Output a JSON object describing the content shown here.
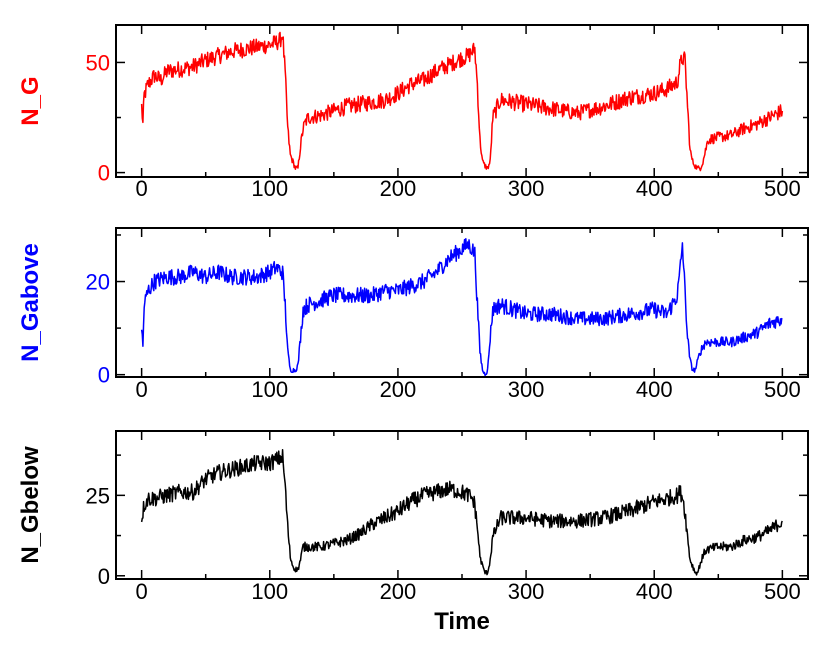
{
  "chart_data": [
    {
      "type": "line",
      "ylabel": "N_G",
      "xlabel": "",
      "xlim": [
        -20,
        520
      ],
      "ylim": [
        -2,
        67
      ],
      "xticks": [
        0,
        100,
        200,
        300,
        400,
        500
      ],
      "yticks": [
        0,
        50
      ],
      "color": "#ff0000",
      "series": [
        {
          "name": "N_G",
          "x": [
            0,
            1,
            2,
            5,
            10,
            15,
            20,
            30,
            40,
            50,
            60,
            70,
            80,
            90,
            100,
            105,
            108,
            110,
            112,
            114,
            116,
            118,
            120,
            122,
            124,
            126,
            128,
            130,
            140,
            150,
            160,
            170,
            180,
            190,
            200,
            210,
            220,
            230,
            240,
            250,
            255,
            258,
            260,
            262,
            264,
            266,
            268,
            270,
            272,
            274,
            280,
            290,
            300,
            320,
            340,
            360,
            380,
            400,
            410,
            418,
            420,
            422,
            424,
            426,
            428,
            430,
            432,
            434,
            436,
            438,
            440,
            442,
            450,
            460,
            470,
            480,
            490,
            500
          ],
          "y": [
            30,
            22,
            35,
            40,
            44,
            42,
            46,
            47,
            48,
            51,
            53,
            55,
            56,
            57,
            58,
            59,
            60,
            63,
            45,
            20,
            8,
            5,
            2,
            2,
            12,
            20,
            23,
            25,
            26,
            28,
            30,
            31,
            32,
            33,
            36,
            40,
            42,
            46,
            49,
            52,
            53,
            55,
            56,
            40,
            15,
            5,
            3,
            2,
            5,
            25,
            33,
            32,
            31,
            29,
            27,
            30,
            34,
            36,
            38,
            41,
            48,
            52,
            51,
            30,
            10,
            5,
            3,
            2,
            2,
            5,
            10,
            15,
            16,
            17,
            20,
            22,
            25,
            28
          ]
        }
      ]
    },
    {
      "type": "line",
      "ylabel": "N_Gabove",
      "xlabel": "",
      "xlim": [
        -20,
        520
      ],
      "ylim": [
        -0.5,
        31.5
      ],
      "xticks": [
        0,
        100,
        200,
        300,
        400,
        500
      ],
      "yticks": [
        0,
        20
      ],
      "color": "#0000ff",
      "series": [
        {
          "name": "N_Gabove",
          "x": [
            0,
            1,
            2,
            5,
            10,
            20,
            30,
            40,
            50,
            60,
            70,
            80,
            90,
            100,
            105,
            110,
            112,
            114,
            116,
            118,
            120,
            122,
            124,
            126,
            130,
            140,
            150,
            160,
            170,
            180,
            190,
            200,
            210,
            220,
            230,
            240,
            250,
            255,
            258,
            260,
            262,
            264,
            266,
            268,
            270,
            272,
            274,
            280,
            290,
            300,
            320,
            340,
            360,
            380,
            400,
            410,
            418,
            420,
            422,
            424,
            426,
            428,
            430,
            432,
            434,
            436,
            440,
            450,
            460,
            470,
            480,
            490,
            500
          ],
          "y": [
            10,
            6,
            15,
            18,
            20,
            21,
            21,
            22,
            21,
            22,
            21,
            21,
            21,
            22,
            23,
            22,
            15,
            5,
            1,
            1,
            1,
            2,
            8,
            14,
            15,
            16,
            17,
            17,
            17,
            17,
            18,
            18,
            19,
            20,
            22,
            25,
            27,
            28,
            27,
            26,
            15,
            5,
            1,
            0,
            1,
            8,
            14,
            15,
            14,
            13,
            13,
            12,
            12,
            13,
            14,
            13,
            17,
            22,
            28,
            18,
            8,
            3,
            1,
            1,
            3,
            5,
            7,
            7,
            7,
            8,
            9,
            11,
            12
          ]
        }
      ]
    },
    {
      "type": "line",
      "ylabel": "N_Gbelow",
      "xlabel": "Time",
      "xlim": [
        -20,
        520
      ],
      "ylim": [
        -1,
        45
      ],
      "xticks": [
        0,
        100,
        200,
        300,
        400,
        500
      ],
      "yticks": [
        0,
        25
      ],
      "color": "#000000",
      "series": [
        {
          "name": "N_Gbelow",
          "x": [
            0,
            2,
            5,
            10,
            20,
            30,
            40,
            50,
            60,
            70,
            80,
            90,
            100,
            105,
            110,
            112,
            114,
            116,
            118,
            120,
            122,
            124,
            126,
            130,
            140,
            150,
            160,
            170,
            180,
            190,
            200,
            210,
            220,
            230,
            240,
            250,
            255,
            258,
            260,
            262,
            264,
            266,
            268,
            270,
            272,
            274,
            280,
            290,
            300,
            320,
            340,
            360,
            380,
            400,
            410,
            418,
            420,
            422,
            424,
            426,
            428,
            430,
            432,
            434,
            436,
            440,
            450,
            460,
            470,
            480,
            490,
            500
          ],
          "y": [
            18,
            22,
            24,
            24,
            25,
            26,
            26,
            30,
            32,
            33,
            34,
            35,
            35,
            36,
            37,
            28,
            15,
            6,
            3,
            2,
            2,
            5,
            9,
            9,
            9,
            10,
            11,
            13,
            16,
            18,
            20,
            23,
            25,
            26,
            27,
            26,
            25,
            24,
            22,
            15,
            6,
            3,
            1,
            1,
            5,
            12,
            18,
            18,
            18,
            17,
            17,
            18,
            20,
            23,
            24,
            25,
            26,
            25,
            20,
            12,
            5,
            3,
            1,
            1,
            4,
            8,
            9,
            9,
            11,
            12,
            14,
            17
          ]
        }
      ]
    }
  ]
}
